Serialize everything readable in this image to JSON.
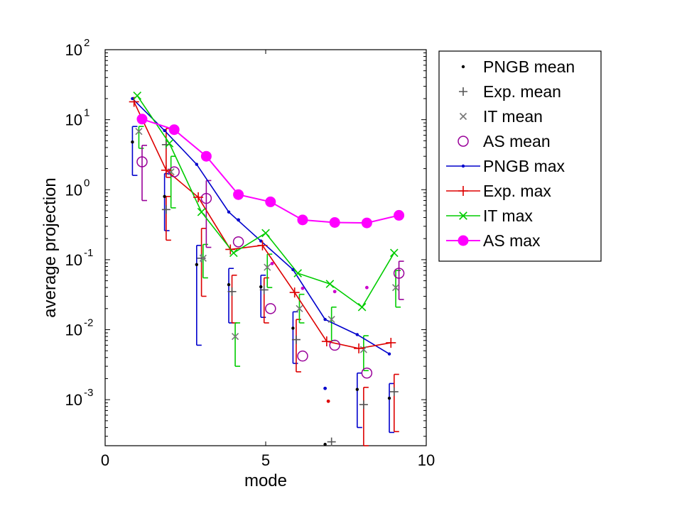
{
  "chart_data": {
    "type": "line",
    "xlabel": "mode",
    "ylabel": "average projection",
    "xlim": [
      0,
      10
    ],
    "ylim": [
      0.00022,
      100
    ],
    "yscale": "log",
    "x_ticks": [
      {
        "value": 0,
        "label": "0"
      },
      {
        "value": 5,
        "label": "5"
      },
      {
        "value": 10,
        "label": "10"
      }
    ],
    "y_ticks": [
      {
        "value": 0.001,
        "base": "10",
        "exp": "-3"
      },
      {
        "value": 0.01,
        "base": "10",
        "exp": "-2"
      },
      {
        "value": 0.1,
        "base": "10",
        "exp": "-1"
      },
      {
        "value": 1,
        "base": "10",
        "exp": "0"
      },
      {
        "value": 10,
        "base": "10",
        "exp": "1"
      },
      {
        "value": 100,
        "base": "10",
        "exp": "2"
      }
    ],
    "grid": false,
    "legend_position": "top-right",
    "series": [
      {
        "name": "PNGB mean",
        "kind": "mean",
        "marker": "dot",
        "color": "#000000",
        "x": [
          0.85,
          1.85,
          2.85,
          3.85,
          4.85,
          5.85,
          6.85,
          7.85,
          8.85
        ],
        "y": [
          4.8,
          0.8,
          0.085,
          0.044,
          0.041,
          0.0105,
          0.00023,
          0.0014,
          0.00105
        ],
        "err_low": [
          1.6,
          0.26,
          0.006,
          0.0125,
          0.015,
          0.0033,
          null,
          0.0004,
          0.00034
        ],
        "err_high": [
          8.0,
          1.7,
          0.16,
          0.075,
          0.06,
          0.018,
          null,
          0.0024,
          0.0017
        ],
        "err_color": "#0000cc"
      },
      {
        "name": "Exp. mean",
        "kind": "mean",
        "marker": "plus",
        "color": "#555555",
        "x": [
          1.9,
          1.9,
          3.0,
          3.95,
          4.95,
          5.95,
          7.05,
          8.05,
          9.0
        ],
        "y": [
          4.4,
          0.52,
          0.105,
          0.035,
          0.037,
          0.0072,
          0.00025,
          0.00085,
          0.0013
        ],
        "err_low": [
          1.5,
          0.19,
          0.03,
          0.0125,
          0.0125,
          0.0025,
          null,
          0.00022,
          0.00035
        ],
        "err_high": [
          7.5,
          0.8,
          0.28,
          0.06,
          0.055,
          0.014,
          null,
          0.0015,
          0.0023
        ],
        "err_color": "#dd0000"
      },
      {
        "name": "IT mean",
        "kind": "mean",
        "marker": "x",
        "color": "#777777",
        "x": [
          1.05,
          2.05,
          3.05,
          4.05,
          5.05,
          6.05,
          7.05,
          8.05,
          9.05
        ],
        "y": [
          6.8,
          1.8,
          0.105,
          0.008,
          0.078,
          0.02,
          0.014,
          0.0052,
          0.04
        ],
        "err_low": [
          3.9,
          0.55,
          0.055,
          0.003,
          0.04,
          0.0125,
          0.007,
          0.0026,
          0.021
        ],
        "err_high": [
          8.0,
          3.0,
          0.165,
          0.0125,
          0.12,
          0.032,
          0.021,
          0.0082,
          0.07
        ],
        "err_color": "#00cc00"
      },
      {
        "name": "AS mean",
        "kind": "mean",
        "marker": "circle",
        "color": "#990099",
        "x": [
          1.15,
          2.15,
          3.15,
          4.15,
          5.15,
          6.15,
          7.15,
          8.15,
          9.15
        ],
        "y": [
          2.5,
          1.8,
          0.75,
          0.18,
          0.02,
          0.0042,
          0.006,
          0.0024,
          0.064
        ],
        "err_low": [
          0.7,
          null,
          0.15,
          null,
          null,
          null,
          null,
          null,
          0.027
        ],
        "err_high": [
          4.3,
          null,
          1.35,
          null,
          null,
          null,
          null,
          null,
          0.095
        ],
        "err_color": "#990099"
      },
      {
        "name": "PNGB max",
        "kind": "max",
        "marker": "dot",
        "color": "#0000cc",
        "x": [
          0.85,
          1.85,
          2.85,
          3.85,
          4.85,
          5.85,
          6.85,
          7.85,
          8.85
        ],
        "y": [
          20,
          7.0,
          2.3,
          0.48,
          0.185,
          0.072,
          0.014,
          0.0085,
          0.0045
        ]
      },
      {
        "name": "Exp. max",
        "kind": "max",
        "marker": "plus",
        "color": "#dd0000",
        "x": [
          0.9,
          1.9,
          2.9,
          3.9,
          4.9,
          5.9,
          6.9,
          7.9,
          8.9
        ],
        "y": [
          18,
          1.9,
          0.78,
          0.14,
          0.16,
          0.034,
          0.0068,
          0.0054,
          0.0065
        ]
      },
      {
        "name": "IT max",
        "kind": "max",
        "marker": "x",
        "color": "#00cc00",
        "x": [
          1.0,
          2.0,
          3.0,
          4.0,
          5.0,
          6.0,
          7.0,
          8.0,
          9.0
        ],
        "y": [
          22,
          4.6,
          0.48,
          0.125,
          0.24,
          0.064,
          0.045,
          0.021,
          0.125
        ]
      },
      {
        "name": "AS max",
        "kind": "max",
        "marker": "filled-circle",
        "color": "#ff00ff",
        "x": [
          1.15,
          2.15,
          3.15,
          4.15,
          5.15,
          6.15,
          7.15,
          8.15,
          9.15
        ],
        "y": [
          10.2,
          7.2,
          3.0,
          0.85,
          0.67,
          0.37,
          0.34,
          0.335,
          0.43
        ]
      }
    ],
    "extra_points": [
      {
        "x": 6.85,
        "y": 0.00145,
        "color": "#0000cc"
      },
      {
        "x": 6.95,
        "y": 0.00095,
        "color": "#dd0000"
      },
      {
        "x": 5.2,
        "y": 0.088,
        "color": "#cc00cc"
      },
      {
        "x": 6.15,
        "y": 0.039,
        "color": "#cc00cc"
      },
      {
        "x": 7.15,
        "y": 0.035,
        "color": "#cc00cc"
      },
      {
        "x": 8.15,
        "y": 0.04,
        "color": "#cc00cc"
      },
      {
        "x": 4.15,
        "y": 0.37,
        "color": "#0000cc"
      }
    ]
  }
}
